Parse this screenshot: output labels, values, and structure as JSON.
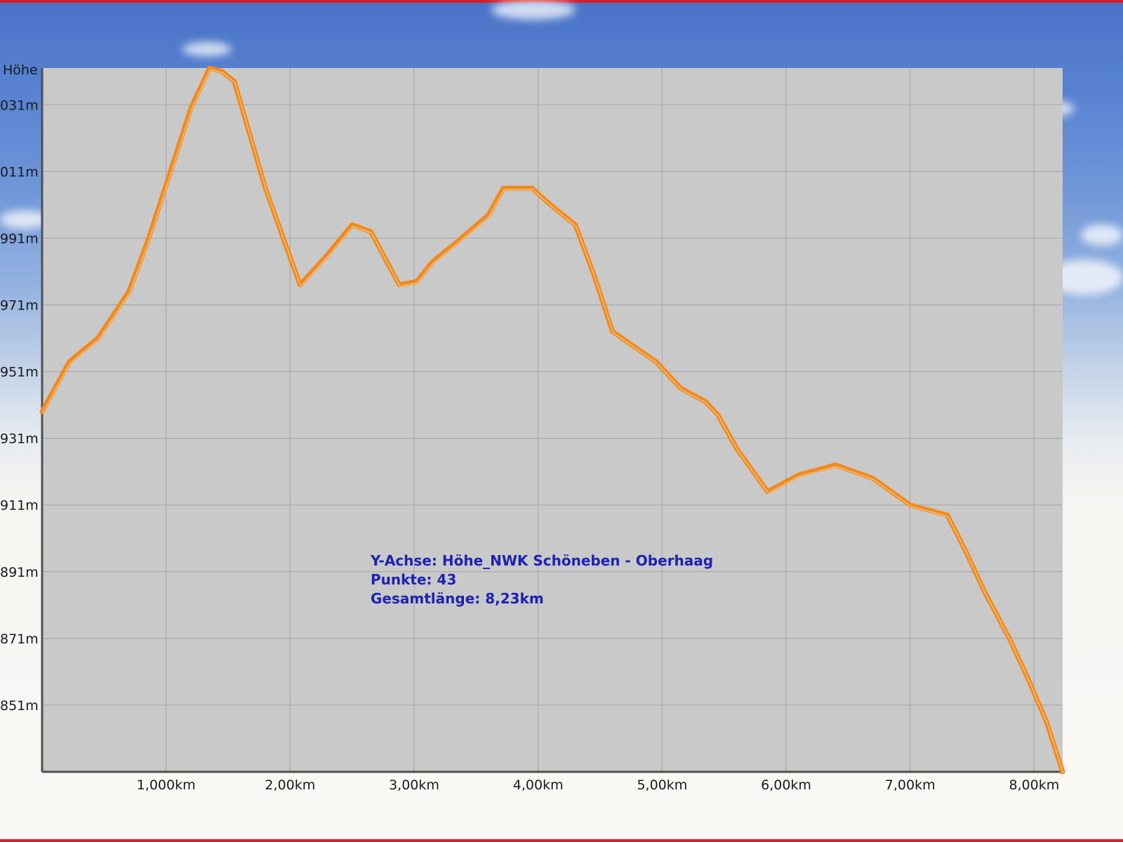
{
  "colors": {
    "line": "#f08a1e",
    "line_highlight": "#ffe8c8",
    "plot_bg": "#c9c9c9",
    "grid": "#a9a9a9",
    "axis": "#505050",
    "info_text": "#1e22b4",
    "frame": "#d0202a"
  },
  "chart_data": {
    "type": "line",
    "title": "",
    "ylabel": "Höhe",
    "xlabel": "",
    "xlim": [
      0,
      8.23
    ],
    "ylim": [
      831,
      1042
    ],
    "x_ticks": [
      1,
      2,
      3,
      4,
      5,
      6,
      7,
      8
    ],
    "x_tick_labels": [
      "1,000km",
      "2,00km",
      "3,00km",
      "4,00km",
      "5,00km",
      "6,00km",
      "7,00km",
      "8,00km"
    ],
    "y_ticks": [
      1031,
      1011,
      991,
      971,
      951,
      931,
      911,
      891,
      871,
      851
    ],
    "y_tick_labels": [
      "031m",
      "011m",
      "991m",
      "971m",
      "951m",
      "931m",
      "911m",
      "891m",
      "871m",
      "851m"
    ],
    "grid": true,
    "series": [
      {
        "x": [
          0,
          0.22,
          0.45,
          0.7,
          0.85,
          1.0,
          1.2,
          1.35,
          1.45,
          1.55,
          1.8,
          2.08,
          2.3,
          2.5,
          2.65,
          2.88,
          3.02,
          3.15,
          3.35,
          3.6,
          3.72,
          3.95,
          4.1,
          4.3,
          4.45,
          4.6,
          4.95,
          5.15,
          5.35,
          5.45,
          5.6,
          5.85,
          6.1,
          6.4,
          6.7,
          7.0,
          7.3,
          7.45,
          7.6,
          7.8,
          7.95,
          8.1,
          8.23
        ],
        "y": [
          939,
          954,
          961,
          975,
          990,
          1007,
          1030,
          1042,
          1041,
          1038,
          1006,
          977,
          986,
          995,
          993,
          977,
          978,
          984,
          990,
          998,
          1006,
          1006,
          1001,
          995,
          980,
          963,
          954,
          946,
          942,
          938,
          928,
          915,
          920,
          923,
          919,
          911,
          908,
          897,
          885,
          871,
          859,
          846,
          831
        ]
      }
    ],
    "info_lines": [
      "Y-Achse: Höhe_NWK Schöneben - Oberhaag",
      "Punkte: 43",
      "Gesamtlänge: 8,23km"
    ]
  }
}
